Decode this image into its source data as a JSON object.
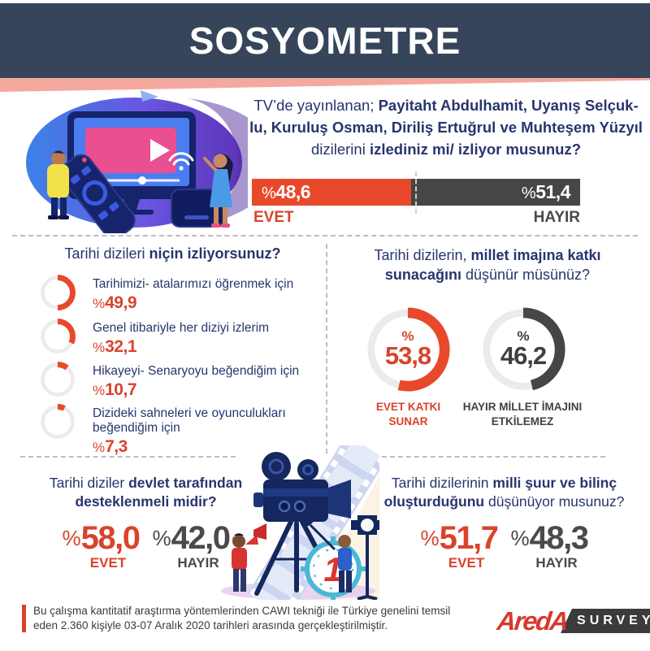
{
  "colors": {
    "header_bg": "#36455a",
    "accent_pink": "#f5a89e",
    "orange": "#e8492b",
    "orange_text": "#d9432c",
    "dark": "#464646",
    "navy": "#28356e",
    "ring_track": "#ebebeb",
    "dash": "#bdbdbd",
    "logo_red": "#d6382e",
    "logo_box": "#3b3b3b"
  },
  "header": {
    "title": "SOSYOMETRE"
  },
  "top": {
    "question": {
      "line1_regular": "TV’de yayınlanan; ",
      "line1_bold": "Payitaht Abdulhamit, Uyanış Selçuk-",
      "line2_bold": "lu, Kuruluş Osman, Diriliş Ertuğrul ve Muhteşem Yüzyıl",
      "line3_regular": "dizilerini ",
      "line3_bold": "izlediniz mi/ izliyor musunuz?"
    },
    "bar": {
      "yes_symbol": "%",
      "yes_value": "48,6",
      "yes_label": "EVET",
      "no_symbol": "%",
      "no_value": "51,4",
      "no_label": "HAYIR"
    }
  },
  "reasons": {
    "heading_regular": "Tarihi dizileri ",
    "heading_bold": "niçin izliyorsunuz?",
    "items": [
      {
        "label": "Tarihimizi- atalarımızı öğrenmek için",
        "symbol": "%",
        "value": "49,9"
      },
      {
        "label": "Genel itibariyle her diziyi izlerim",
        "symbol": "%",
        "value": "32,1"
      },
      {
        "label": "Hikayeyi- Senaryoyu beğendiğim için",
        "symbol": "%",
        "value": "10,7"
      },
      {
        "label": "Dizideki sahneleri ve oyunculukları beğendiğim için",
        "symbol": "%",
        "value": "7,3"
      }
    ]
  },
  "image_contrib": {
    "heading_regular": "Tarihi dizilerin, ",
    "heading_bold": "millet imajına katkı sunacağını",
    "heading_regular2": " düşünür müsünüz?",
    "donuts": [
      {
        "symbol": "%",
        "value": "53,8",
        "label_line1": "EVET KATKI",
        "label_line2": "SUNAR"
      },
      {
        "symbol": "%",
        "value": "46,2",
        "label_line1": "HAYIR MİLLET İMAJINI",
        "label_line2": "ETKİLEMEZ"
      }
    ]
  },
  "state_support": {
    "heading_regular": "Tarihi diziler ",
    "heading_bold": "devlet tarafından desteklenmeli midir?",
    "yes": {
      "symbol": "%",
      "value": "58,0",
      "label": "EVET"
    },
    "no": {
      "symbol": "%",
      "value": "42,0",
      "label": "HAYIR"
    }
  },
  "consciousness": {
    "heading_regular": "Tarihi dizilerinin ",
    "heading_bold": "milli şuur ve bilinç oluşturduğunu",
    "heading_regular2": " düşünüyor musunuz?",
    "yes": {
      "symbol": "%",
      "value": "51,7",
      "label": "EVET"
    },
    "no": {
      "symbol": "%",
      "value": "48,3",
      "label": "HAYIR"
    }
  },
  "footer": {
    "note_line1": "Bu çalışma kantitatif araştırma yöntemlerinden CAWI tekniği ile Türkiye genelini temsil",
    "note_line2": "eden 2.360 kişiyle 03-07 Aralık 2020 tarihleri arasında gerçekleştirilmiştir.",
    "logo_text": "AredA",
    "logo_suffix": "SURVEY"
  },
  "chart_data": [
    {
      "type": "bar",
      "title": "TV’de yayınlanan; Payitaht Abdulhamit, Uyanış Selçuklu, Kuruluş Osman, Diriliş Ertuğrul ve Muhteşem Yüzyıl dizilerini izlediniz mi/ izliyor musunuz?",
      "categories": [
        "EVET",
        "HAYIR"
      ],
      "values": [
        48.6,
        51.4
      ],
      "value_labels": [
        "%48,6",
        "%51,4"
      ],
      "colors": [
        "#e8492b",
        "#464646"
      ],
      "layout": "single horizontal stacked bar, dashed marker at 50%"
    },
    {
      "type": "bar",
      "title": "Tarihi dizileri niçin izliyorsunuz?",
      "categories": [
        "Tarihimizi- atalarımızı öğrenmek için",
        "Genel itibariyle her diziyi izlerim",
        "Hikayeyi- Senaryoyu beğendiğim için",
        "Dizideki sahneleri ve oyunculukları beğendiğim için"
      ],
      "values": [
        49.9,
        32.1,
        10.7,
        7.3
      ],
      "value_labels": [
        "%49,9",
        "%32,1",
        "%10,7",
        "%7,3"
      ],
      "layout": "list with small ring-progress icons, orange arcs"
    },
    {
      "type": "pie",
      "title": "Tarihi dizilerin, millet imajına katkı sunacağını düşünür müsünüz?",
      "categories": [
        "EVET KATKI SUNAR",
        "HAYIR MİLLET İMAJINI ETKİLEMEZ"
      ],
      "values": [
        53.8,
        46.2
      ],
      "value_labels": [
        "%53,8",
        "%46,2"
      ],
      "colors": [
        "#e8492b",
        "#464646"
      ],
      "layout": "two separate donut gauges, arcs start at 12 o'clock clockwise"
    },
    {
      "type": "bar",
      "title": "Tarihi diziler devlet tarafından desteklenmeli midir?",
      "categories": [
        "EVET",
        "HAYIR"
      ],
      "values": [
        58.0,
        42.0
      ],
      "value_labels": [
        "%58,0",
        "%42,0"
      ],
      "colors": [
        "#e8492b",
        "#464646"
      ],
      "layout": "big number pair"
    },
    {
      "type": "bar",
      "title": "Tarihi dizilerinin milli şuur ve bilinç oluşturduğunu düşünüyor musunuz?",
      "categories": [
        "EVET",
        "HAYIR"
      ],
      "values": [
        51.7,
        48.3
      ],
      "value_labels": [
        "%51,7",
        "%48,3"
      ],
      "colors": [
        "#e8492b",
        "#464646"
      ],
      "layout": "big number pair"
    }
  ]
}
